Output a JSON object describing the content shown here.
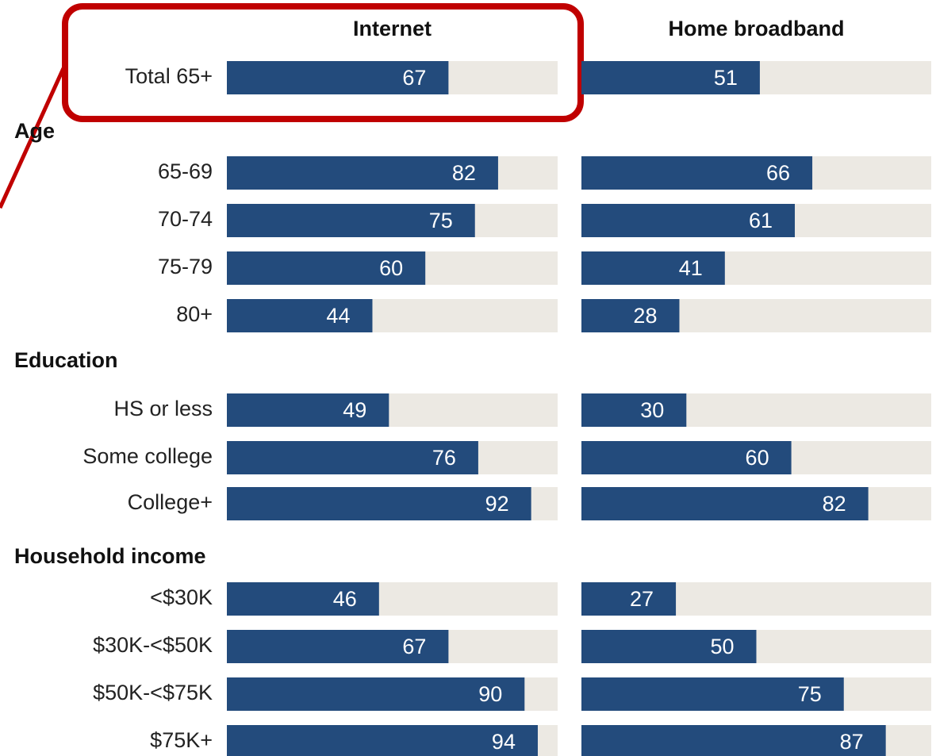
{
  "chart_data": {
    "type": "bar",
    "categories": [
      "Total 65+",
      "Age",
      "65-69",
      "70-74",
      "75-79",
      "80+",
      "Education",
      "HS or less",
      "Some college",
      "College+",
      "Household income",
      "<$30K",
      "$30K-<$50K",
      "$50K-<$75K",
      "$75K+"
    ],
    "series": [
      {
        "name": "Internet",
        "color": "#234b7c",
        "values": [
          67,
          null,
          82,
          75,
          60,
          44,
          null,
          49,
          76,
          92,
          null,
          46,
          67,
          90,
          94
        ]
      },
      {
        "name": "Home broadband",
        "color": "#234b7c",
        "values": [
          51,
          null,
          66,
          61,
          41,
          28,
          null,
          30,
          60,
          82,
          null,
          27,
          50,
          75,
          87
        ]
      }
    ],
    "track_color": "#ece9e3",
    "xlim": [
      0,
      100
    ]
  }
}
